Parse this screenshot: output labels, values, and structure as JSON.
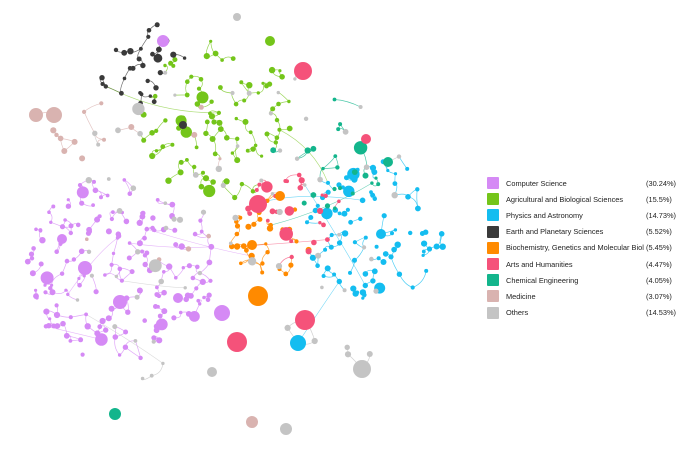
{
  "legend": {
    "items": [
      {
        "label": "Computer Science",
        "percent": "(30.24%)",
        "color": "#d58af5",
        "share": 30.24
      },
      {
        "label": "Agricultural and Biological Sciences",
        "percent": "(15.5%)",
        "color": "#74c51a",
        "share": 15.5
      },
      {
        "label": "Physics and Astronomy",
        "percent": "(14.73%)",
        "color": "#14bdf0",
        "share": 14.73
      },
      {
        "label": "Earth and Planetary Sciences",
        "percent": "(5.52%)",
        "color": "#3a3a3a",
        "share": 5.52
      },
      {
        "label": "Biochemistry, Genetics and Molecular Biology",
        "percent": "(5.45%)",
        "color": "#ff8a00",
        "share": 5.45
      },
      {
        "label": "Arts and Humanities",
        "percent": "(4.47%)",
        "color": "#f5527a",
        "share": 4.47
      },
      {
        "label": "Chemical Engineering",
        "percent": "(4.05%)",
        "color": "#13b58c",
        "share": 4.05
      },
      {
        "label": "Medicine",
        "percent": "(3.07%)",
        "color": "#d9b3b0",
        "share": 3.07
      },
      {
        "label": "Others",
        "percent": "(14.53%)",
        "color": "#c4c4c4",
        "share": 14.53
      }
    ]
  }
}
